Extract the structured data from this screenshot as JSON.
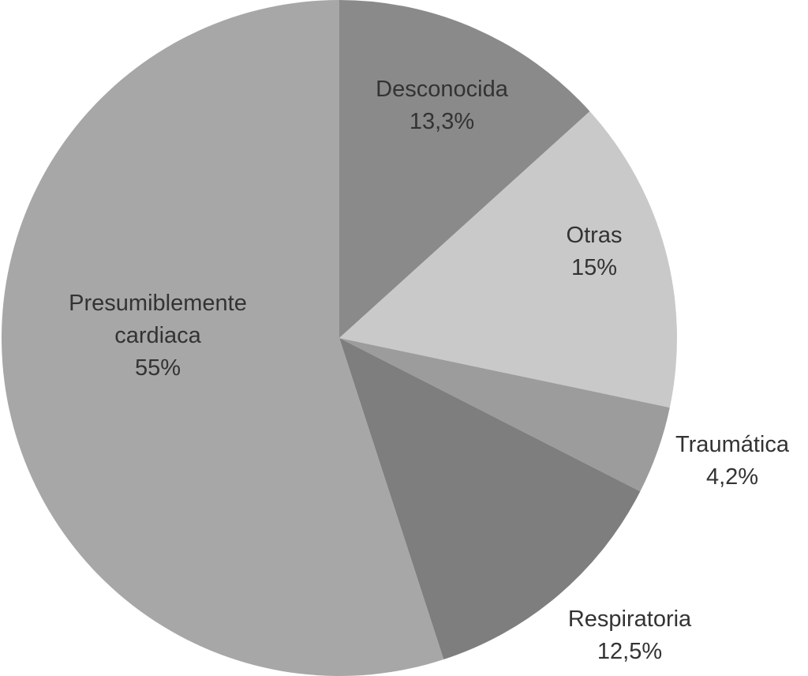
{
  "chart_data": {
    "type": "pie",
    "title": "",
    "direction": "clockwise",
    "start_angle_deg": 0,
    "text_color": "#333333",
    "background": "#ffffff",
    "slices": [
      {
        "label": "Desconocida",
        "value": 13.3,
        "value_label": "13,3%",
        "color": "#8a8a8a",
        "label_position": "inside"
      },
      {
        "label": "Otras",
        "value": 15.0,
        "value_label": "15%",
        "color": "#c9c9c9",
        "label_position": "inside"
      },
      {
        "label": "Traumática",
        "value": 4.2,
        "value_label": "4,2%",
        "color": "#9c9c9c",
        "label_position": "outside"
      },
      {
        "label": "Respiratoria",
        "value": 12.5,
        "value_label": "12,5%",
        "color": "#7e7e7e",
        "label_position": "outside"
      },
      {
        "label": "Presumiblemente cardiaca",
        "value": 55.0,
        "value_label": "55%",
        "color": "#a7a7a7",
        "label_position": "inside"
      }
    ]
  }
}
